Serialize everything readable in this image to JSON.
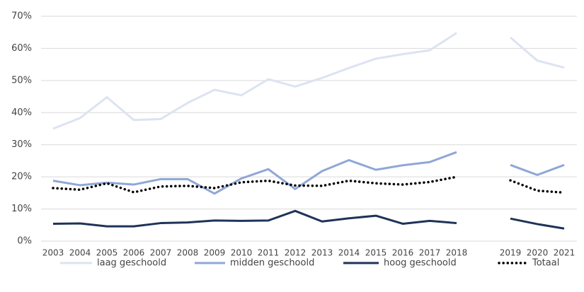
{
  "chart_data": {
    "type": "line",
    "categories": [
      "2003",
      "2004",
      "2005",
      "2006",
      "2007",
      "2008",
      "2009",
      "2010",
      "2011",
      "2012",
      "2013",
      "2014",
      "2015",
      "2016",
      "2017",
      "2018",
      null,
      "2019",
      "2020",
      "2021"
    ],
    "series": [
      {
        "name": "laag geschoold",
        "color": "#dce3f1",
        "style": "solid",
        "values": [
          35.0,
          38.3,
          44.8,
          37.7,
          38.0,
          43.0,
          47.1,
          45.4,
          50.4,
          48.1,
          50.8,
          53.9,
          56.8,
          58.2,
          59.4,
          64.8,
          null,
          63.4,
          56.2,
          54.0
        ]
      },
      {
        "name": "midden geschoold",
        "color": "#8fa7d6",
        "style": "solid",
        "values": [
          18.8,
          17.4,
          18.2,
          17.6,
          19.3,
          19.3,
          14.8,
          19.5,
          22.4,
          16.2,
          21.8,
          25.2,
          22.2,
          23.6,
          24.6,
          27.7,
          null,
          23.7,
          20.6,
          23.7
        ]
      },
      {
        "name": "hoog geschoold",
        "color": "#1f3358",
        "style": "solid",
        "values": [
          5.4,
          5.5,
          4.6,
          4.6,
          5.6,
          5.8,
          6.4,
          6.3,
          6.4,
          9.4,
          6.1,
          7.1,
          7.9,
          5.4,
          6.3,
          5.6,
          null,
          7.0,
          5.3,
          3.9
        ]
      },
      {
        "name": "Totaal",
        "color": "#000000",
        "style": "dotted",
        "values": [
          16.5,
          16.0,
          18.0,
          15.2,
          17.0,
          17.2,
          16.5,
          18.3,
          18.8,
          17.3,
          17.2,
          18.8,
          18.0,
          17.6,
          18.4,
          20.0,
          null,
          18.9,
          15.7,
          15.1
        ]
      }
    ],
    "ylim": [
      0,
      70
    ],
    "yticks": [
      {
        "value": 0,
        "label": "0%"
      },
      {
        "value": 10,
        "label": "10%"
      },
      {
        "value": 20,
        "label": "20%"
      },
      {
        "value": 30,
        "label": "30%"
      },
      {
        "value": 40,
        "label": "40%"
      },
      {
        "value": 50,
        "label": "50%"
      },
      {
        "value": 60,
        "label": "60%"
      },
      {
        "value": 70,
        "label": "70%"
      }
    ],
    "grid": true,
    "legend": "bottom"
  }
}
